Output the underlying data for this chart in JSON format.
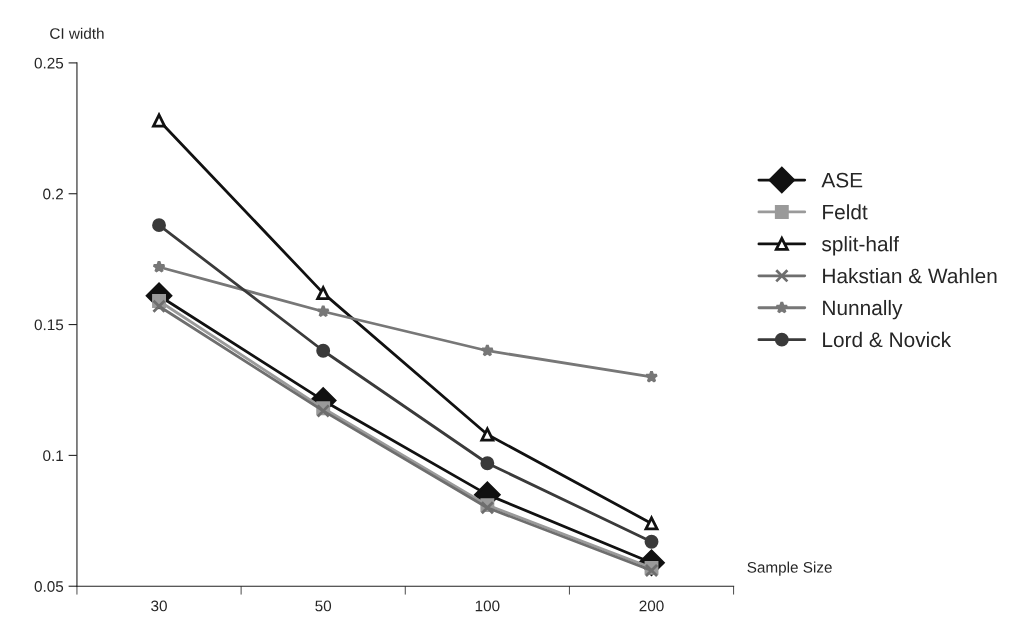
{
  "chart_data": {
    "type": "line",
    "xlabel": "Sample Size",
    "ylabel": "CI width",
    "categories": [
      "30",
      "50",
      "100",
      "200"
    ],
    "series": [
      {
        "name": "ASE",
        "color": "#111111",
        "marker": "diamond",
        "values": [
          0.161,
          0.121,
          0.085,
          0.059
        ]
      },
      {
        "name": "Feldt",
        "color": "#9a9a9a",
        "marker": "square",
        "values": [
          0.159,
          0.118,
          0.081,
          0.057
        ]
      },
      {
        "name": "split-half",
        "color": "#111111",
        "marker": "triangle",
        "values": [
          0.228,
          0.162,
          0.108,
          0.074
        ]
      },
      {
        "name": "Hakstian & Wahlen",
        "color": "#6e6e6e",
        "marker": "cross",
        "values": [
          0.157,
          0.117,
          0.08,
          0.056
        ]
      },
      {
        "name": "Nunnally",
        "color": "#777777",
        "marker": "star",
        "values": [
          0.172,
          0.155,
          0.14,
          0.13
        ]
      },
      {
        "name": "Lord & Novick",
        "color": "#3a3a3a",
        "marker": "circle",
        "values": [
          0.188,
          0.14,
          0.097,
          0.067
        ]
      }
    ],
    "ylim": [
      0.05,
      0.25
    ],
    "yticks": [
      0.05,
      0.1,
      0.15,
      0.2,
      0.25
    ],
    "grid": false,
    "legend": "right"
  }
}
